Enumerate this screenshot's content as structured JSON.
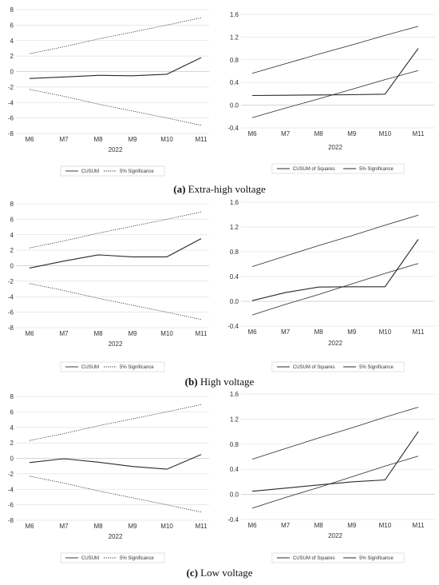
{
  "chart_data": [
    {
      "type": "line",
      "panel": "a-left",
      "categories": [
        "M6",
        "M7",
        "M8",
        "M9",
        "M10",
        "M11"
      ],
      "xlabel": "2022",
      "ylim": [
        -8,
        8
      ],
      "yticks": [
        "8",
        "6",
        "4",
        "2",
        "0",
        "-2",
        "-4",
        "-6",
        "-8"
      ],
      "series": [
        {
          "name": "CUSUM",
          "values": [
            -0.9,
            -0.7,
            -0.5,
            -0.55,
            -0.35,
            1.8
          ],
          "style": "solid"
        },
        {
          "name": "5% Significance",
          "values": [
            2.3,
            3.2,
            4.2,
            5.1,
            6.0,
            6.95
          ],
          "style": "dotted"
        },
        {
          "name": "",
          "values": [
            -2.3,
            -3.2,
            -4.2,
            -5.1,
            -6.0,
            -6.95
          ],
          "style": "dotted"
        }
      ]
    },
    {
      "type": "line",
      "panel": "a-right",
      "categories": [
        "M6",
        "M7",
        "M8",
        "M9",
        "M10",
        "M11"
      ],
      "xlabel": "2022",
      "ylim": [
        -0.4,
        1.6
      ],
      "yticks": [
        "1.6",
        "1.2",
        "0.8",
        "0.4",
        "0.0",
        "-0.4"
      ],
      "series": [
        {
          "name": "CUSUM of Squares",
          "values": [
            0.17,
            0.175,
            0.18,
            0.185,
            0.195,
            1.0
          ],
          "style": "solid"
        },
        {
          "name": "5% Significance",
          "values": [
            0.56,
            0.73,
            0.9,
            1.06,
            1.23,
            1.39
          ],
          "style": "solid"
        },
        {
          "name": "",
          "values": [
            -0.22,
            -0.05,
            0.11,
            0.28,
            0.45,
            0.61
          ],
          "style": "solid"
        }
      ]
    },
    {
      "type": "line",
      "panel": "b-left",
      "categories": [
        "M6",
        "M7",
        "M8",
        "M9",
        "M10",
        "M11"
      ],
      "xlabel": "2022",
      "ylim": [
        -8,
        8
      ],
      "yticks": [
        "8",
        "6",
        "4",
        "2",
        "0",
        "-2",
        "-4",
        "-6",
        "-8"
      ],
      "series": [
        {
          "name": "CUSUM",
          "values": [
            -0.3,
            0.6,
            1.4,
            1.15,
            1.15,
            3.5
          ],
          "style": "solid"
        },
        {
          "name": "5% Significance",
          "values": [
            2.3,
            3.2,
            4.2,
            5.1,
            6.0,
            6.95
          ],
          "style": "dotted"
        },
        {
          "name": "",
          "values": [
            -2.3,
            -3.2,
            -4.2,
            -5.1,
            -6.0,
            -6.95
          ],
          "style": "dotted"
        }
      ]
    },
    {
      "type": "line",
      "panel": "b-right",
      "categories": [
        "M6",
        "M7",
        "M8",
        "M9",
        "M10",
        "M11"
      ],
      "xlabel": "2022",
      "ylim": [
        -0.4,
        1.6
      ],
      "yticks": [
        "1.6",
        "1.2",
        "0.8",
        "0.4",
        "0.0",
        "-0.4"
      ],
      "series": [
        {
          "name": "CUSUM of Squares",
          "values": [
            0.01,
            0.14,
            0.23,
            0.235,
            0.235,
            1.0
          ],
          "style": "solid"
        },
        {
          "name": "5% Significance",
          "values": [
            0.56,
            0.73,
            0.9,
            1.06,
            1.23,
            1.39
          ],
          "style": "solid"
        },
        {
          "name": "",
          "values": [
            -0.22,
            -0.05,
            0.11,
            0.28,
            0.45,
            0.61
          ],
          "style": "solid"
        }
      ]
    },
    {
      "type": "line",
      "panel": "c-left",
      "categories": [
        "M6",
        "M7",
        "M8",
        "M9",
        "M10",
        "M11"
      ],
      "xlabel": "2022",
      "ylim": [
        -8,
        8
      ],
      "yticks": [
        "8",
        "6",
        "4",
        "2",
        "0",
        "-2",
        "-4",
        "-6",
        "-8"
      ],
      "series": [
        {
          "name": "CUSUM",
          "values": [
            -0.55,
            -0.05,
            -0.5,
            -1.05,
            -1.4,
            0.5
          ],
          "style": "solid"
        },
        {
          "name": "5% Significance",
          "values": [
            2.3,
            3.2,
            4.2,
            5.1,
            6.0,
            6.95
          ],
          "style": "dotted"
        },
        {
          "name": "",
          "values": [
            -2.3,
            -3.2,
            -4.2,
            -5.1,
            -6.0,
            -6.95
          ],
          "style": "dotted"
        }
      ]
    },
    {
      "type": "line",
      "panel": "c-right",
      "categories": [
        "M6",
        "M7",
        "M8",
        "M9",
        "M10",
        "M11"
      ],
      "xlabel": "2022",
      "ylim": [
        -0.4,
        1.6
      ],
      "yticks": [
        "1.6",
        "1.2",
        "0.8",
        "0.4",
        "0.0",
        "-0.4"
      ],
      "series": [
        {
          "name": "CUSUM of Squares",
          "values": [
            0.05,
            0.1,
            0.15,
            0.2,
            0.23,
            1.0
          ],
          "style": "solid"
        },
        {
          "name": "5% Significance",
          "values": [
            0.56,
            0.73,
            0.9,
            1.06,
            1.23,
            1.39
          ],
          "style": "solid"
        },
        {
          "name": "",
          "values": [
            -0.22,
            -0.05,
            0.11,
            0.28,
            0.45,
            0.61
          ],
          "style": "solid"
        }
      ]
    }
  ],
  "captions": [
    {
      "label": "(a)",
      "text": " Extra-high voltage"
    },
    {
      "label": "(b)",
      "text": " High voltage"
    },
    {
      "label": "(c)",
      "text": " Low voltage"
    }
  ],
  "line_color": "#2a2a2a"
}
